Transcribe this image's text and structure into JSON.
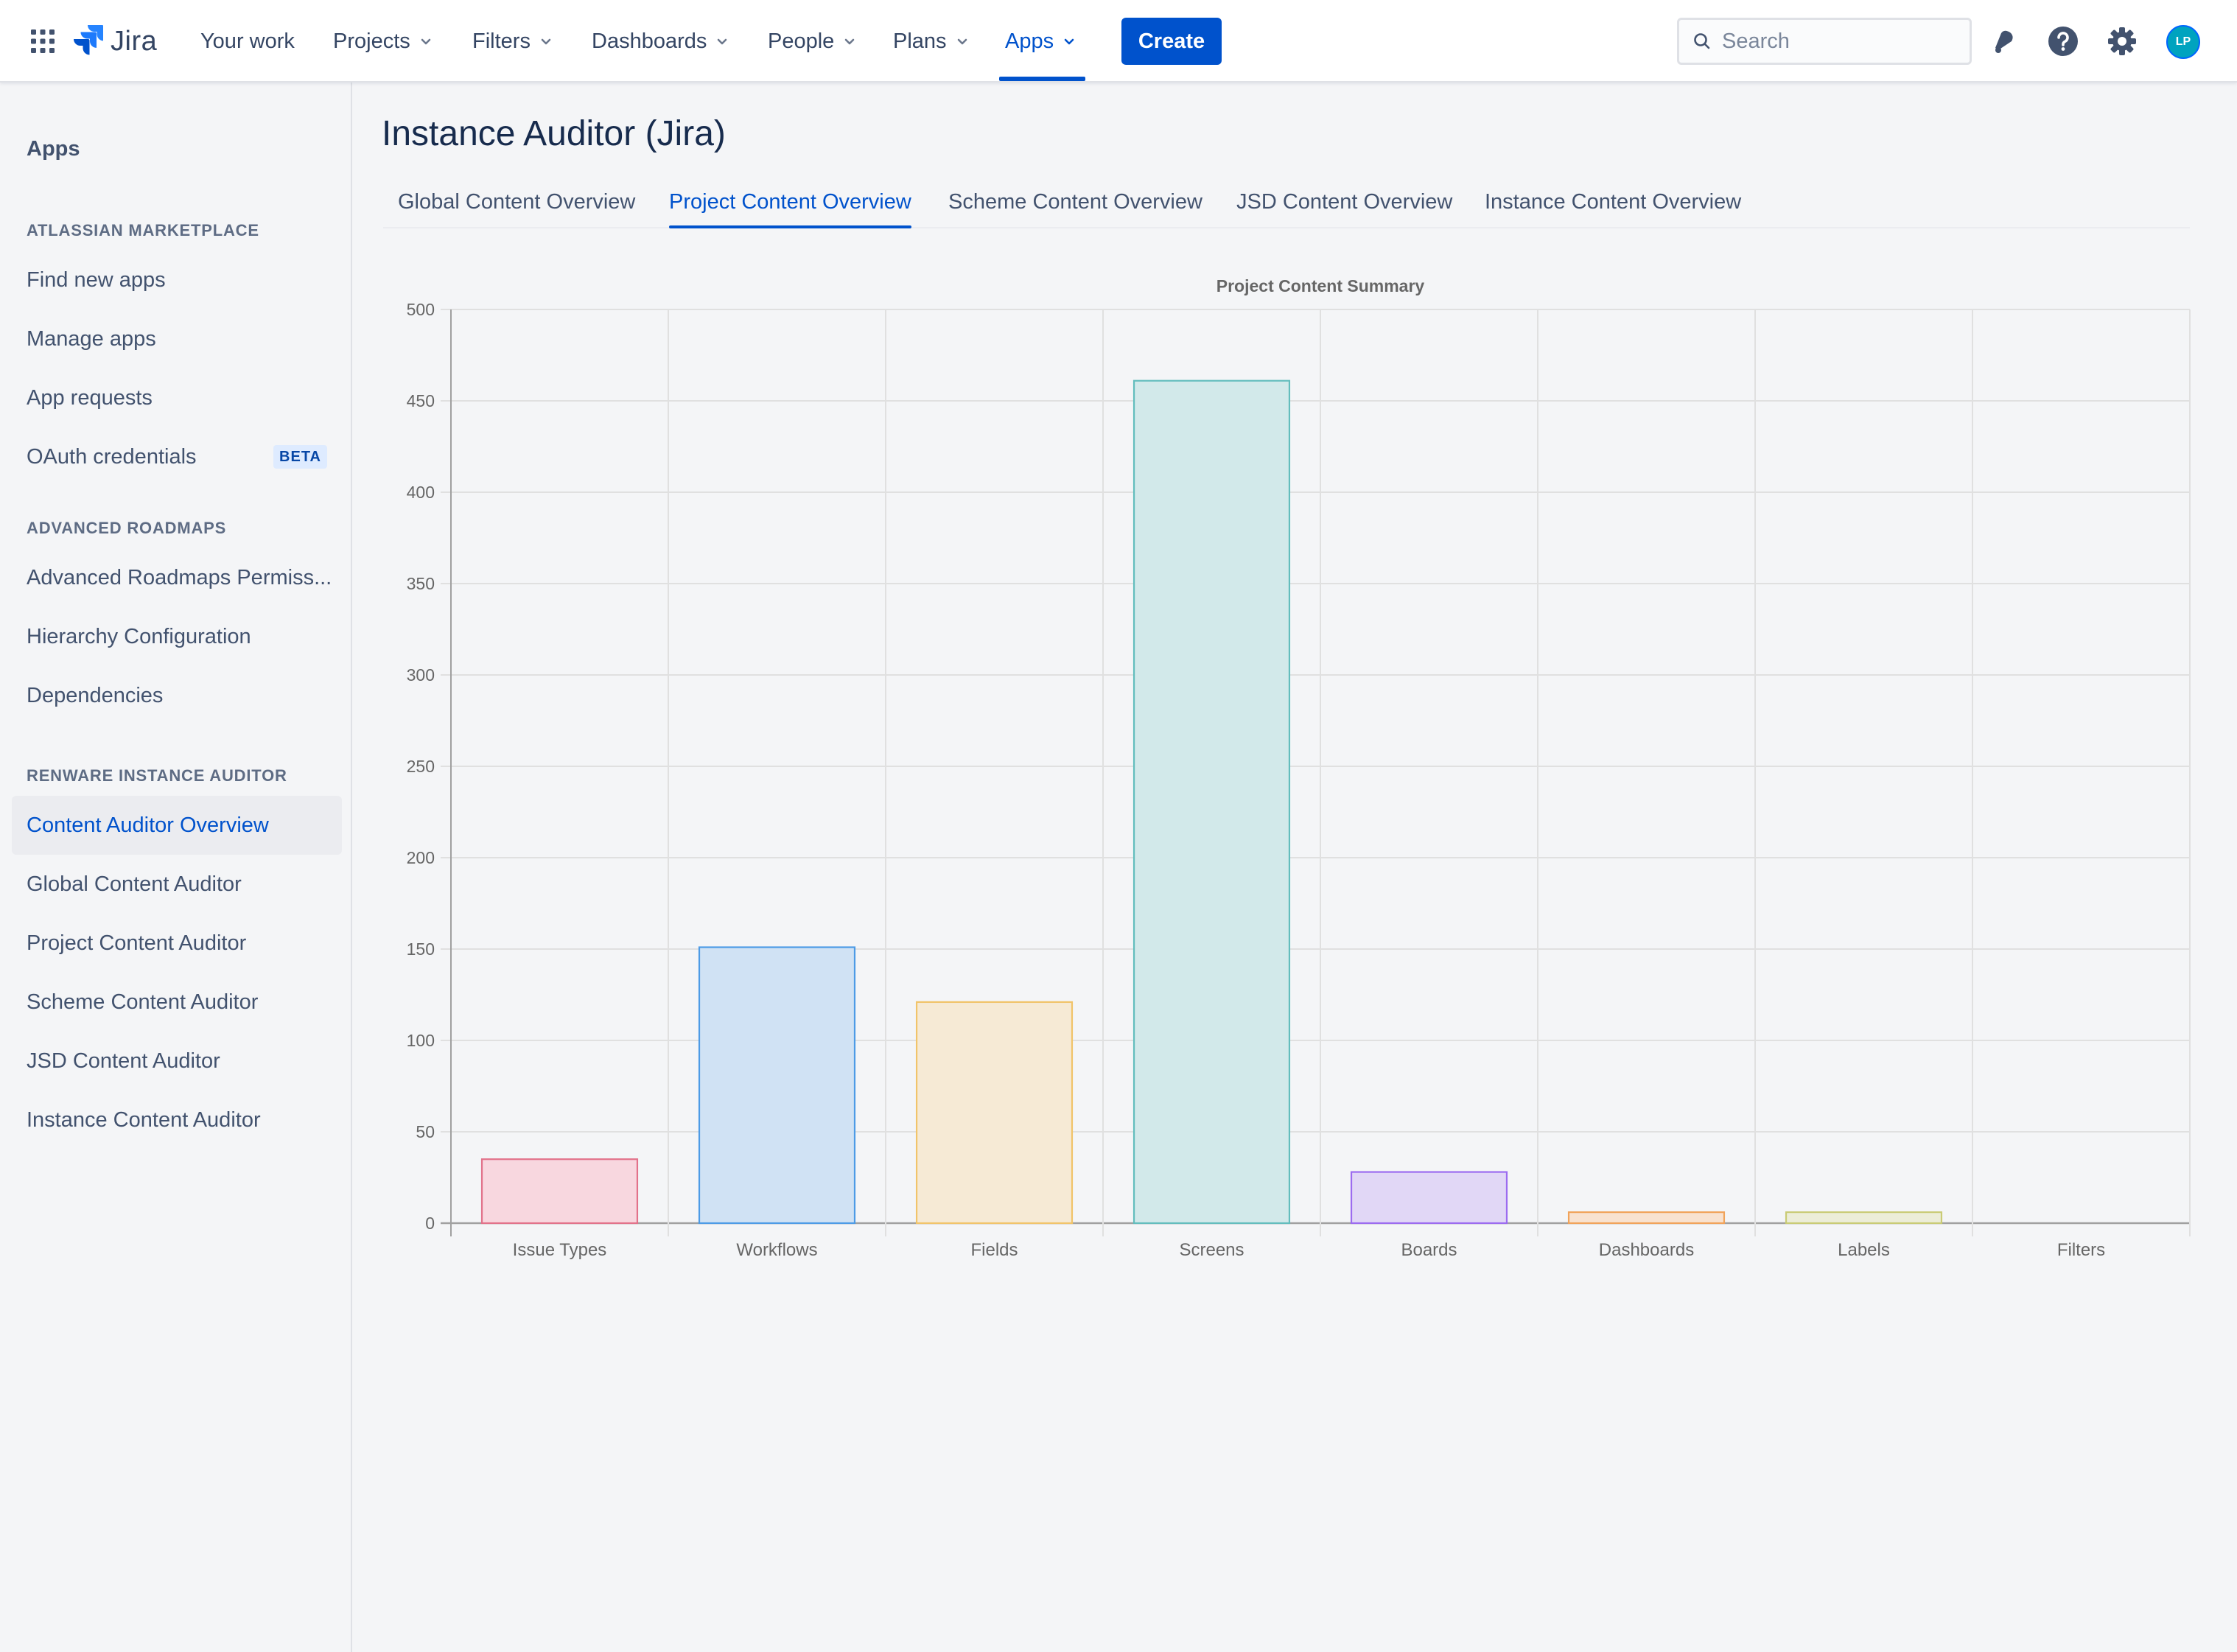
{
  "topnav": {
    "logo_text": "Jira",
    "items": [
      {
        "label": "Your work",
        "dropdown": false
      },
      {
        "label": "Projects",
        "dropdown": true
      },
      {
        "label": "Filters",
        "dropdown": true
      },
      {
        "label": "Dashboards",
        "dropdown": true
      },
      {
        "label": "People",
        "dropdown": true
      },
      {
        "label": "Plans",
        "dropdown": true
      },
      {
        "label": "Apps",
        "dropdown": true,
        "active": true
      }
    ],
    "create_label": "Create",
    "search_placeholder": "Search",
    "avatar_initials": "LP",
    "icons": [
      "app-switcher-icon",
      "jira-logo-icon",
      "notifications-icon",
      "help-icon",
      "settings-icon"
    ]
  },
  "sidebar": {
    "heading": "Apps",
    "sections": [
      {
        "title": "ATLASSIAN MARKETPLACE",
        "items": [
          {
            "label": "Find new apps"
          },
          {
            "label": "Manage apps"
          },
          {
            "label": "App requests"
          },
          {
            "label": "OAuth credentials",
            "badge": "BETA"
          }
        ]
      },
      {
        "title": "ADVANCED ROADMAPS",
        "items": [
          {
            "label": "Advanced Roadmaps Permiss..."
          },
          {
            "label": "Hierarchy Configuration"
          },
          {
            "label": "Dependencies"
          }
        ]
      },
      {
        "title": "RENWARE INSTANCE AUDITOR",
        "items": [
          {
            "label": "Content Auditor Overview",
            "selected": true
          },
          {
            "label": "Global Content Auditor"
          },
          {
            "label": "Project Content Auditor"
          },
          {
            "label": "Scheme Content Auditor"
          },
          {
            "label": "JSD Content Auditor"
          },
          {
            "label": "Instance Content Auditor"
          }
        ]
      }
    ]
  },
  "main": {
    "title": "Instance Auditor (Jira)",
    "tabs": [
      {
        "label": "Global Content Overview"
      },
      {
        "label": "Project Content Overview",
        "active": true
      },
      {
        "label": "Scheme Content Overview"
      },
      {
        "label": "JSD Content Overview"
      },
      {
        "label": "Instance Content Overview"
      }
    ]
  },
  "chart_data": {
    "type": "bar",
    "title": "Project Content Summary",
    "categories": [
      "Issue Types",
      "Workflows",
      "Fields",
      "Screens",
      "Boards",
      "Dashboards",
      "Labels",
      "Filters"
    ],
    "values": [
      35,
      151,
      121,
      461,
      28,
      6,
      6,
      0
    ],
    "fill_colors": [
      "#F8D7DF",
      "#D0E2F4",
      "#F6EAD5",
      "#D2E9EA",
      "#E1D7F6",
      "#F8E2D0",
      "#ECEDD8",
      "#E2E2E4"
    ],
    "border_colors": [
      "#E2728A",
      "#4D9BE6",
      "#F1C46A",
      "#63BDBD",
      "#9C6BF0",
      "#F1A35A",
      "#C9CB75",
      "#C9CBCF"
    ],
    "ylim": [
      0,
      500
    ],
    "yticks": [
      0,
      50,
      100,
      150,
      200,
      250,
      300,
      350,
      400,
      450,
      500
    ],
    "xlabel": "",
    "ylabel": "",
    "grid": true,
    "legend": "none"
  }
}
